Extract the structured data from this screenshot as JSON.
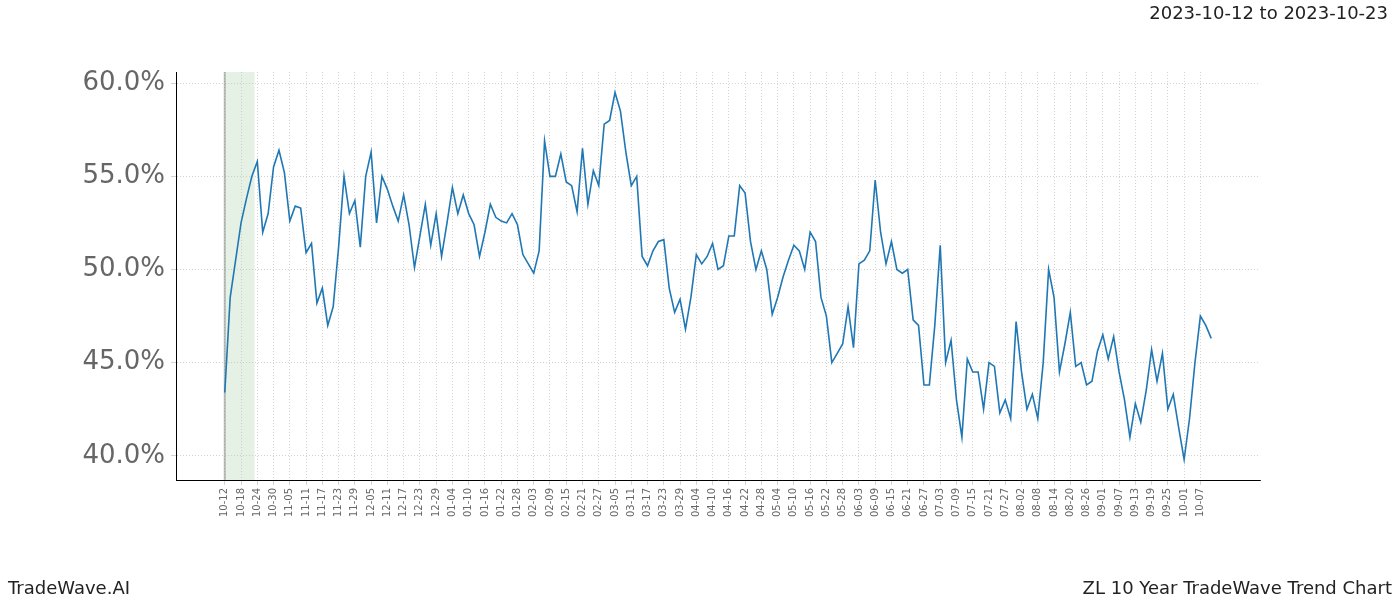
{
  "chart_data": {
    "type": "line",
    "title": "ZL 10 Year TradeWave Trend Chart",
    "subtitle": "2023-10-12 to 2023-10-23",
    "source": "TradeWave.AI",
    "color": "#1f77b4",
    "grid": true,
    "shaded_range": [
      0,
      11
    ],
    "x": [
      0,
      2,
      4,
      6,
      8,
      10,
      12,
      14,
      16,
      18,
      20,
      22,
      24,
      26,
      28,
      30,
      32,
      34,
      36,
      38,
      40,
      42,
      44,
      46,
      48,
      50,
      52,
      54,
      56,
      58,
      60,
      62,
      64,
      66,
      68,
      70,
      72,
      74,
      76,
      78,
      80,
      82,
      84,
      86,
      88,
      90,
      92,
      94,
      96,
      98,
      100,
      102,
      104,
      106,
      108,
      110,
      112,
      114,
      116,
      118,
      120,
      122,
      124,
      126,
      128,
      130,
      132,
      134,
      136,
      138,
      140,
      142,
      144,
      146,
      148,
      150,
      152,
      154,
      156,
      158,
      160,
      162,
      164,
      166,
      168,
      170,
      172,
      174,
      176,
      178,
      180,
      182,
      184,
      186,
      188,
      190,
      192,
      194,
      196,
      198,
      200,
      202,
      204,
      206,
      208,
      210,
      212,
      214,
      216,
      218,
      220,
      222,
      224,
      226,
      228,
      230,
      232,
      234,
      236,
      238,
      240,
      242,
      244,
      246,
      248,
      250,
      252,
      254,
      256,
      258,
      260,
      262,
      264,
      266,
      268,
      270,
      272,
      274,
      276,
      278,
      280,
      282,
      284,
      286,
      288,
      290,
      292,
      294,
      296,
      298,
      300,
      302,
      304,
      306,
      308,
      310,
      312,
      314,
      316,
      318,
      320,
      322,
      324,
      326,
      328,
      330,
      332,
      334,
      336,
      338,
      340,
      342,
      344,
      346,
      348,
      350,
      352,
      354,
      356,
      358,
      360,
      362,
      364
    ],
    "values": [
      43.4,
      48.5,
      50.5,
      52.5,
      53.8,
      55,
      55.8,
      52,
      53,
      55.5,
      56.4,
      55.2,
      52.6,
      53.4,
      53.3,
      50.9,
      51.4,
      48.2,
      49,
      47,
      48,
      51.2,
      55,
      53,
      53.7,
      51.2,
      55,
      56.3,
      52.5,
      55,
      54.3,
      53.4,
      52.6,
      54,
      52.4,
      50.1,
      51.8,
      53.5,
      51.3,
      53,
      50.7,
      52.5,
      54.4,
      53,
      54,
      53,
      52.4,
      50.7,
      52,
      53.5,
      52.8,
      52.6,
      52.5,
      53,
      52.4,
      50.8,
      50.3,
      49.8,
      51,
      56.9,
      55,
      55,
      56.2,
      54.7,
      54.5,
      53.1,
      56.5,
      53.5,
      55.3,
      54.5,
      57.8,
      58,
      59.5,
      58.5,
      56.3,
      54.5,
      55,
      50.7,
      50.2,
      51,
      51.5,
      51.6,
      49,
      47.7,
      48.4,
      46.8,
      48.5,
      50.8,
      50.3,
      50.7,
      51.4,
      50,
      50.2,
      51.8,
      51.8,
      54.5,
      54.1,
      51.5,
      50,
      51,
      50,
      47.6,
      48.5,
      49.6,
      50.5,
      51.3,
      51,
      50,
      52,
      51.5,
      48.5,
      47.5,
      45,
      45.5,
      46,
      48,
      45.8,
      50.3,
      50.5,
      51,
      54.8,
      52,
      50.3,
      51.5,
      50,
      49.8,
      50,
      47.3,
      47,
      43.8,
      43.8,
      47,
      51.3,
      45,
      46.2,
      43,
      41,
      45.2,
      44.5,
      44.5,
      42.5,
      45,
      44.8,
      42.3,
      43,
      42,
      47.2,
      44.5,
      42.5,
      43.3,
      42,
      45,
      50,
      48.5,
      44.5,
      46,
      47.7,
      44.8,
      45,
      43.8,
      44,
      45.6,
      46.5,
      45.2,
      46.4,
      44.5,
      43,
      41,
      42.8,
      41.8,
      43.5,
      45.7,
      44,
      45.5,
      42.5,
      43.3,
      41.5,
      39.8,
      42,
      45,
      47.5,
      47,
      46.3
    ],
    "xlim": [
      -18,
      382
    ],
    "xticks": [
      {
        "value": 0,
        "label": "10-12"
      },
      {
        "value": 6,
        "label": "10-18"
      },
      {
        "value": 12,
        "label": "10-24"
      },
      {
        "value": 18,
        "label": "10-30"
      },
      {
        "value": 24,
        "label": "11-05"
      },
      {
        "value": 30,
        "label": "11-11"
      },
      {
        "value": 36,
        "label": "11-17"
      },
      {
        "value": 42,
        "label": "11-23"
      },
      {
        "value": 48,
        "label": "11-29"
      },
      {
        "value": 54,
        "label": "12-05"
      },
      {
        "value": 60,
        "label": "12-11"
      },
      {
        "value": 66,
        "label": "12-17"
      },
      {
        "value": 72,
        "label": "12-23"
      },
      {
        "value": 78,
        "label": "12-29"
      },
      {
        "value": 84,
        "label": "01-04"
      },
      {
        "value": 90,
        "label": "01-10"
      },
      {
        "value": 96,
        "label": "01-16"
      },
      {
        "value": 102,
        "label": "01-22"
      },
      {
        "value": 108,
        "label": "01-28"
      },
      {
        "value": 114,
        "label": "02-03"
      },
      {
        "value": 120,
        "label": "02-09"
      },
      {
        "value": 126,
        "label": "02-15"
      },
      {
        "value": 132,
        "label": "02-21"
      },
      {
        "value": 138,
        "label": "02-27"
      },
      {
        "value": 144,
        "label": "03-05"
      },
      {
        "value": 150,
        "label": "03-11"
      },
      {
        "value": 156,
        "label": "03-17"
      },
      {
        "value": 162,
        "label": "03-23"
      },
      {
        "value": 168,
        "label": "03-29"
      },
      {
        "value": 174,
        "label": "04-04"
      },
      {
        "value": 180,
        "label": "04-10"
      },
      {
        "value": 186,
        "label": "04-16"
      },
      {
        "value": 192,
        "label": "04-22"
      },
      {
        "value": 198,
        "label": "04-28"
      },
      {
        "value": 204,
        "label": "05-04"
      },
      {
        "value": 210,
        "label": "05-10"
      },
      {
        "value": 216,
        "label": "05-16"
      },
      {
        "value": 222,
        "label": "05-22"
      },
      {
        "value": 228,
        "label": "05-28"
      },
      {
        "value": 234,
        "label": "06-03"
      },
      {
        "value": 240,
        "label": "06-09"
      },
      {
        "value": 246,
        "label": "06-15"
      },
      {
        "value": 252,
        "label": "06-21"
      },
      {
        "value": 258,
        "label": "06-27"
      },
      {
        "value": 264,
        "label": "07-03"
      },
      {
        "value": 270,
        "label": "07-09"
      },
      {
        "value": 276,
        "label": "07-15"
      },
      {
        "value": 282,
        "label": "07-21"
      },
      {
        "value": 288,
        "label": "07-27"
      },
      {
        "value": 294,
        "label": "08-02"
      },
      {
        "value": 300,
        "label": "08-08"
      },
      {
        "value": 306,
        "label": "08-14"
      },
      {
        "value": 312,
        "label": "08-20"
      },
      {
        "value": 318,
        "label": "08-26"
      },
      {
        "value": 324,
        "label": "09-01"
      },
      {
        "value": 330,
        "label": "09-07"
      },
      {
        "value": 336,
        "label": "09-13"
      },
      {
        "value": 342,
        "label": "09-19"
      },
      {
        "value": 348,
        "label": "09-25"
      },
      {
        "value": 354,
        "label": "10-01"
      },
      {
        "value": 360,
        "label": "10-07"
      }
    ],
    "ylim": [
      38.7,
      60.6
    ],
    "yticks": [
      {
        "value": 40,
        "label": "40.0%"
      },
      {
        "value": 45,
        "label": "45.0%"
      },
      {
        "value": 50,
        "label": "50.0%"
      },
      {
        "value": 55,
        "label": "55.0%"
      },
      {
        "value": 60,
        "label": "60.0%"
      }
    ]
  }
}
